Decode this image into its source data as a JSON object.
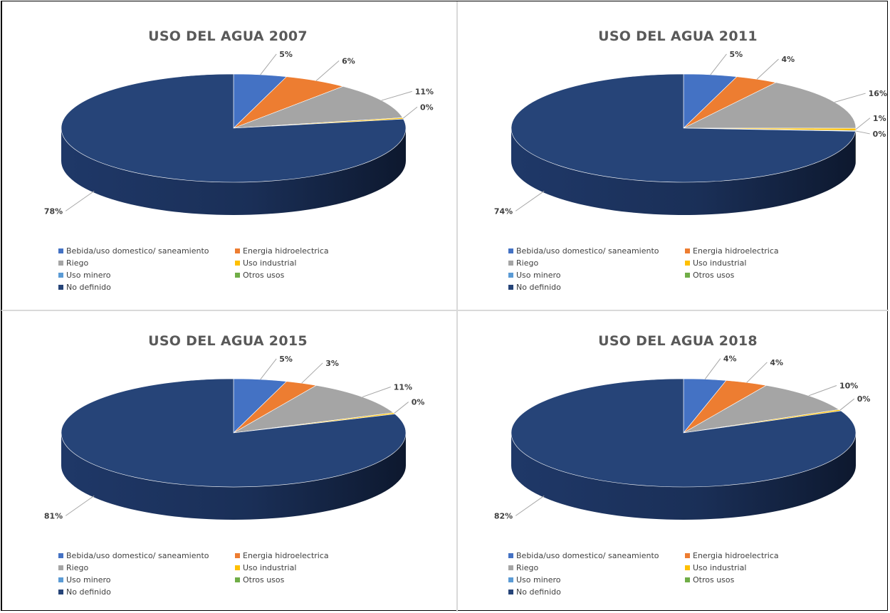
{
  "palette": {
    "Bebida/uso domestico/ saneamiento": "#4472c4",
    "Energia hidroelectrica": "#ed7d31",
    "Riego": "#a5a5a5",
    "Uso industrial": "#ffc000",
    "Uso minero": "#5b9bd5",
    "Otros usos": "#70ad47",
    "No definido": "#264478"
  },
  "chart_data": [
    {
      "type": "pie",
      "title": "USO DEL AGUA 2007",
      "legend_position": "bottom",
      "categories": [
        "Bebida/uso domestico/ saneamiento",
        "Energia hidroelectrica",
        "Riego",
        "Uso industrial",
        "Uso minero",
        "Otros usos",
        "No definido"
      ],
      "values": [
        5,
        6,
        11,
        0.4,
        0,
        0,
        78
      ],
      "labels": [
        "5%",
        "6%",
        "11%",
        "0%",
        "",
        "",
        "78%"
      ]
    },
    {
      "type": "pie",
      "title": "USO DEL AGUA 2011",
      "legend_position": "bottom",
      "categories": [
        "Bebida/uso domestico/ saneamiento",
        "Energia hidroelectrica",
        "Riego",
        "Uso industrial",
        "Uso minero",
        "Otros usos",
        "No definido"
      ],
      "values": [
        5,
        4,
        16,
        0.7,
        0.2,
        0,
        74
      ],
      "labels": [
        "5%",
        "4%",
        "16%",
        "1%",
        "0%",
        "",
        "74%"
      ]
    },
    {
      "type": "pie",
      "title": "USO DEL AGUA 2015",
      "legend_position": "bottom",
      "categories": [
        "Bebida/uso domestico/ saneamiento",
        "Energia hidroelectrica",
        "Riego",
        "Uso industrial",
        "Uso minero",
        "Otros usos",
        "No definido"
      ],
      "values": [
        5,
        3,
        11,
        0.4,
        0,
        0,
        81
      ],
      "labels": [
        "5%",
        "3%",
        "11%",
        "0%",
        "",
        "",
        "81%"
      ]
    },
    {
      "type": "pie",
      "title": "USO DEL AGUA 2018",
      "legend_position": "bottom",
      "categories": [
        "Bebida/uso domestico/ saneamiento",
        "Energia hidroelectrica",
        "Riego",
        "Uso industrial",
        "Uso minero",
        "Otros usos",
        "No definido"
      ],
      "values": [
        4,
        4,
        10,
        0.4,
        0,
        0,
        82
      ],
      "labels": [
        "4%",
        "4%",
        "10%",
        "0%",
        "",
        "",
        "82%"
      ]
    }
  ]
}
